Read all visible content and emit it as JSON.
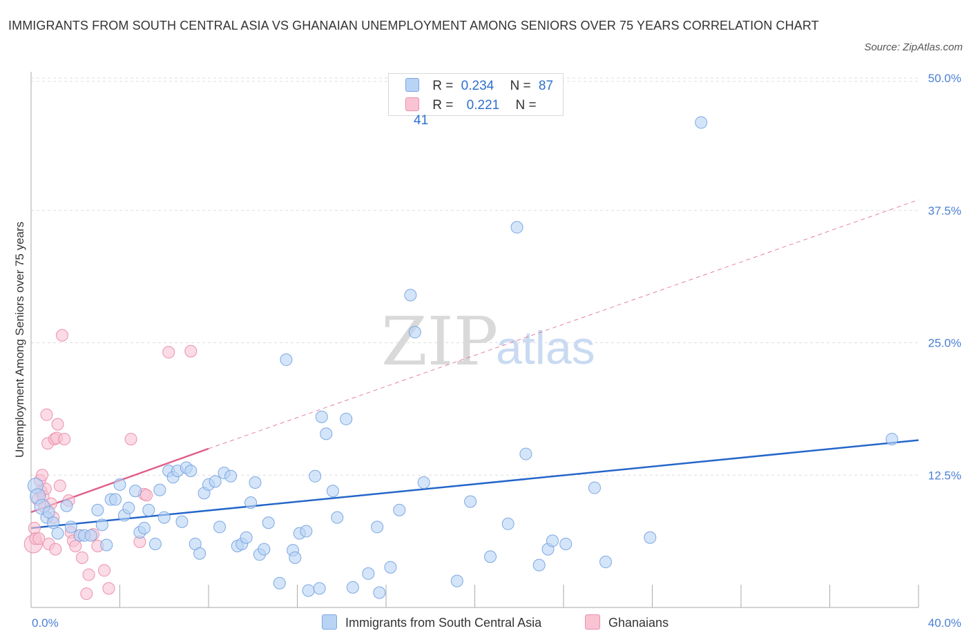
{
  "title": "IMMIGRANTS FROM SOUTH CENTRAL ASIA VS GHANAIAN UNEMPLOYMENT AMONG SENIORS OVER 75 YEARS CORRELATION CHART",
  "source": "Source: ZipAtlas.com",
  "watermark": {
    "zip": "ZIP",
    "atlas": "atlas"
  },
  "colors": {
    "blue_fill": "#b9d3f5",
    "blue_stroke": "#7ba7e2",
    "blue_line": "#2466c9",
    "pink_fill": "#f9c3d3",
    "pink_stroke": "#ec8fab",
    "pink_line": "#e0608a",
    "axis_text": "#4a7fd4",
    "grid": "#dddddd"
  },
  "legend": {
    "rows": [
      {
        "r_label": "R =",
        "r_value": "0.234",
        "n_label": "N =",
        "n_value": "87"
      },
      {
        "r_label": "R =",
        "r_value": "0.221",
        "n_label": "N =",
        "n_value": "41"
      }
    ]
  },
  "bottom_legend": {
    "series1": "Immigrants from South Central Asia",
    "series2": "Ghanaians"
  },
  "chart_data": {
    "type": "scatter",
    "xlabel": "",
    "ylabel": "Unemployment Among Seniors over 75 years",
    "xlim": [
      0,
      40
    ],
    "ylim": [
      0,
      50
    ],
    "x_tick_labels": [
      "0.0%",
      "40.0%"
    ],
    "y_ticks": [
      12.5,
      25.0,
      37.5,
      50.0
    ],
    "y_tick_labels": [
      "12.5%",
      "25.0%",
      "37.5%",
      "50.0%"
    ],
    "grid": true,
    "series": [
      {
        "name": "Immigrants from South Central Asia",
        "color": "#b9d3f5",
        "R": 0.234,
        "N": 87,
        "trend": {
          "x0": 0,
          "y0": 7.5,
          "x1": 40,
          "y1": 15.8
        },
        "points": [
          [
            0.2,
            11.5
          ],
          [
            0.3,
            10.5
          ],
          [
            0.5,
            9.5
          ],
          [
            0.7,
            8.5
          ],
          [
            0.8,
            9.0
          ],
          [
            1.0,
            8.0
          ],
          [
            1.2,
            7.0
          ],
          [
            1.6,
            9.6
          ],
          [
            1.8,
            7.6
          ],
          [
            2.2,
            6.8
          ],
          [
            2.4,
            6.8
          ],
          [
            2.7,
            6.8
          ],
          [
            3.0,
            9.2
          ],
          [
            3.2,
            7.8
          ],
          [
            3.4,
            5.9
          ],
          [
            3.6,
            10.2
          ],
          [
            3.8,
            10.2
          ],
          [
            4.0,
            11.6
          ],
          [
            4.2,
            8.7
          ],
          [
            4.4,
            9.4
          ],
          [
            4.7,
            11.0
          ],
          [
            4.9,
            7.1
          ],
          [
            5.1,
            7.5
          ],
          [
            5.3,
            9.2
          ],
          [
            5.6,
            6.0
          ],
          [
            5.8,
            11.1
          ],
          [
            6.0,
            8.5
          ],
          [
            6.2,
            12.9
          ],
          [
            6.4,
            12.3
          ],
          [
            6.6,
            12.9
          ],
          [
            6.8,
            8.1
          ],
          [
            7.0,
            13.2
          ],
          [
            7.2,
            12.9
          ],
          [
            7.4,
            6.0
          ],
          [
            7.6,
            5.1
          ],
          [
            7.8,
            10.8
          ],
          [
            8.0,
            11.6
          ],
          [
            8.3,
            11.9
          ],
          [
            8.5,
            7.6
          ],
          [
            8.7,
            12.7
          ],
          [
            9.0,
            12.4
          ],
          [
            9.3,
            5.8
          ],
          [
            9.5,
            6.0
          ],
          [
            9.7,
            6.6
          ],
          [
            9.9,
            9.9
          ],
          [
            10.1,
            11.8
          ],
          [
            10.3,
            5.0
          ],
          [
            10.5,
            5.5
          ],
          [
            10.7,
            8.0
          ],
          [
            11.2,
            2.3
          ],
          [
            11.5,
            23.4
          ],
          [
            11.8,
            5.4
          ],
          [
            11.9,
            4.7
          ],
          [
            12.1,
            7.0
          ],
          [
            12.4,
            7.2
          ],
          [
            12.5,
            1.6
          ],
          [
            12.8,
            12.4
          ],
          [
            13.0,
            1.8
          ],
          [
            13.1,
            18.0
          ],
          [
            13.3,
            16.4
          ],
          [
            13.6,
            11.0
          ],
          [
            13.8,
            8.5
          ],
          [
            14.2,
            17.8
          ],
          [
            14.5,
            1.9
          ],
          [
            15.2,
            3.2
          ],
          [
            15.6,
            7.6
          ],
          [
            15.7,
            1.4
          ],
          [
            16.2,
            3.8
          ],
          [
            16.6,
            9.2
          ],
          [
            17.1,
            29.5
          ],
          [
            17.3,
            26.0
          ],
          [
            17.7,
            11.8
          ],
          [
            19.2,
            2.5
          ],
          [
            19.8,
            10.0
          ],
          [
            20.7,
            4.8
          ],
          [
            21.5,
            7.9
          ],
          [
            21.9,
            35.9
          ],
          [
            22.3,
            14.5
          ],
          [
            22.9,
            4.0
          ],
          [
            23.3,
            5.5
          ],
          [
            23.5,
            6.3
          ],
          [
            24.1,
            6.0
          ],
          [
            25.4,
            11.3
          ],
          [
            25.9,
            4.3
          ],
          [
            27.9,
            6.6
          ],
          [
            30.2,
            45.8
          ],
          [
            38.8,
            15.9
          ]
        ]
      },
      {
        "name": "Ghanaians",
        "color": "#f9c3d3",
        "R": 0.221,
        "N": 41,
        "trend": {
          "x0": 0,
          "y0": 9.0,
          "x1": 8,
          "y1": 15.0
        },
        "trend_dashed": {
          "x0": 8,
          "y0": 15.0,
          "x1": 40,
          "y1": 38.5
        },
        "points": [
          [
            0.1,
            6.0
          ],
          [
            0.15,
            7.5
          ],
          [
            0.2,
            6.5
          ],
          [
            0.3,
            10.2
          ],
          [
            0.35,
            6.5
          ],
          [
            0.4,
            12.0
          ],
          [
            0.45,
            11.0
          ],
          [
            0.5,
            12.5
          ],
          [
            0.55,
            10.5
          ],
          [
            0.6,
            9.5
          ],
          [
            0.65,
            11.2
          ],
          [
            0.7,
            18.2
          ],
          [
            0.75,
            15.5
          ],
          [
            0.8,
            6.0
          ],
          [
            0.9,
            9.8
          ],
          [
            1.0,
            8.5
          ],
          [
            1.05,
            15.9
          ],
          [
            1.1,
            5.5
          ],
          [
            1.15,
            16.0
          ],
          [
            1.2,
            17.3
          ],
          [
            1.3,
            11.5
          ],
          [
            1.4,
            25.7
          ],
          [
            1.5,
            15.9
          ],
          [
            1.7,
            10.1
          ],
          [
            1.8,
            7.1
          ],
          [
            1.9,
            6.3
          ],
          [
            2.0,
            5.8
          ],
          [
            2.2,
            6.8
          ],
          [
            2.3,
            4.7
          ],
          [
            2.5,
            1.3
          ],
          [
            2.6,
            3.1
          ],
          [
            2.8,
            6.9
          ],
          [
            3.0,
            5.8
          ],
          [
            3.3,
            3.5
          ],
          [
            3.5,
            1.8
          ],
          [
            4.5,
            15.9
          ],
          [
            4.9,
            6.2
          ],
          [
            5.1,
            10.7
          ],
          [
            5.2,
            10.6
          ],
          [
            6.2,
            24.1
          ],
          [
            7.2,
            24.2
          ]
        ]
      }
    ]
  }
}
